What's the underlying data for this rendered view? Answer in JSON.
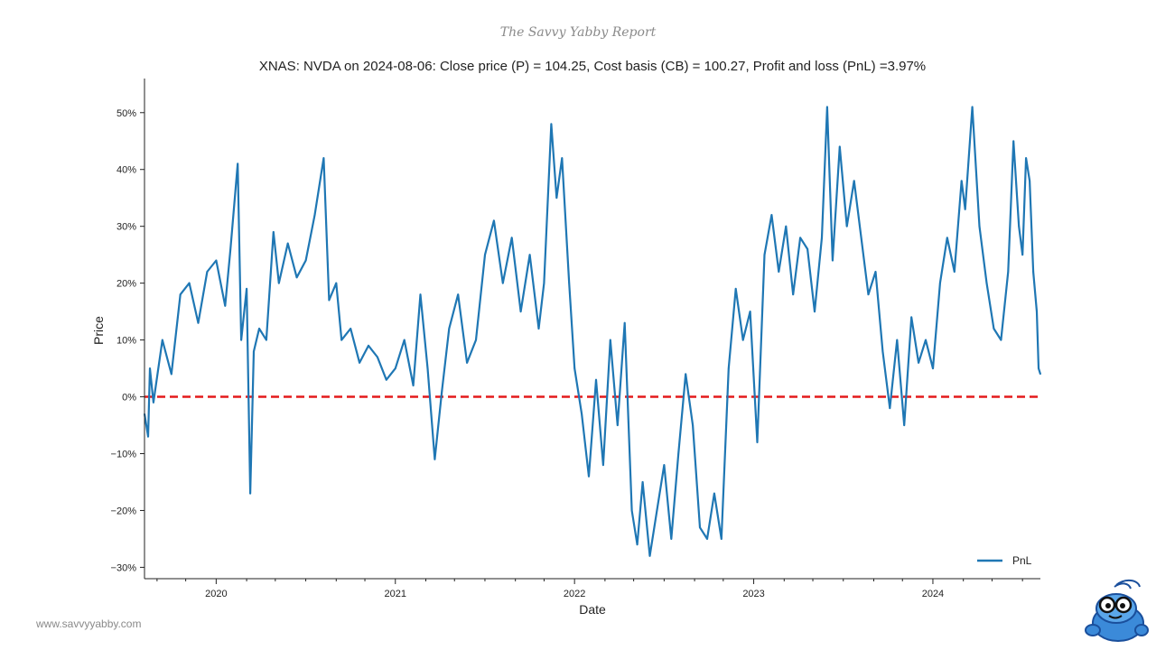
{
  "brand": {
    "header": "The Savvy Yabby Report",
    "footer_url": "www.savvyyabby.com"
  },
  "colors": {
    "series": "#1f77b4",
    "zero_line": "#e41a1c",
    "text": "#222222",
    "brand_text": "#8a8a8a"
  },
  "chart_data": {
    "type": "line",
    "title": "XNAS: NVDA on 2024-08-06: Close price (P) = 104.25, Cost basis (CB) = 100.27, Profit and loss (PnL) =3.97%",
    "xlabel": "Date",
    "ylabel": "Price",
    "xlim": [
      2019.6,
      2024.6
    ],
    "ylim": [
      -32,
      56
    ],
    "y_ticks": [
      -30,
      -20,
      -10,
      0,
      10,
      20,
      30,
      40,
      50
    ],
    "y_tick_labels": [
      "−30%",
      "−20%",
      "−10%",
      "0%",
      "10%",
      "20%",
      "30%",
      "40%",
      "50%"
    ],
    "x_ticks": [
      2020,
      2021,
      2022,
      2023,
      2024
    ],
    "x_tick_labels": [
      "2020",
      "2021",
      "2022",
      "2023",
      "2024"
    ],
    "x_minor_ticks": [
      2019.67,
      2019.83,
      2020.17,
      2020.33,
      2020.5,
      2020.67,
      2020.83,
      2021.17,
      2021.33,
      2021.5,
      2021.67,
      2021.83,
      2022.17,
      2022.33,
      2022.5,
      2022.67,
      2022.83,
      2023.17,
      2023.33,
      2023.5,
      2023.67,
      2023.83,
      2024.17,
      2024.33,
      2024.5
    ],
    "legend": {
      "position": "bottom-right",
      "entries": [
        "PnL"
      ]
    },
    "reference_line": {
      "y": 0,
      "style": "dashed"
    },
    "series": [
      {
        "name": "PnL",
        "x": [
          2019.6,
          2019.62,
          2019.63,
          2019.65,
          2019.7,
          2019.75,
          2019.8,
          2019.85,
          2019.9,
          2019.95,
          2020.0,
          2020.05,
          2020.08,
          2020.12,
          2020.14,
          2020.17,
          2020.19,
          2020.21,
          2020.24,
          2020.28,
          2020.32,
          2020.35,
          2020.4,
          2020.45,
          2020.5,
          2020.55,
          2020.6,
          2020.63,
          2020.67,
          2020.7,
          2020.75,
          2020.8,
          2020.85,
          2020.9,
          2020.95,
          2021.0,
          2021.05,
          2021.1,
          2021.14,
          2021.18,
          2021.22,
          2021.26,
          2021.3,
          2021.35,
          2021.4,
          2021.45,
          2021.5,
          2021.55,
          2021.6,
          2021.65,
          2021.7,
          2021.75,
          2021.8,
          2021.83,
          2021.87,
          2021.9,
          2021.93,
          2021.97,
          2022.0,
          2022.04,
          2022.08,
          2022.12,
          2022.16,
          2022.2,
          2022.24,
          2022.28,
          2022.32,
          2022.35,
          2022.38,
          2022.42,
          2022.46,
          2022.5,
          2022.54,
          2022.58,
          2022.62,
          2022.66,
          2022.7,
          2022.74,
          2022.78,
          2022.82,
          2022.86,
          2022.9,
          2022.94,
          2022.98,
          2023.02,
          2023.06,
          2023.1,
          2023.14,
          2023.18,
          2023.22,
          2023.26,
          2023.3,
          2023.34,
          2023.38,
          2023.41,
          2023.44,
          2023.48,
          2023.52,
          2023.56,
          2023.6,
          2023.64,
          2023.68,
          2023.72,
          2023.76,
          2023.8,
          2023.84,
          2023.88,
          2023.92,
          2023.96,
          2024.0,
          2024.04,
          2024.08,
          2024.12,
          2024.16,
          2024.18,
          2024.22,
          2024.26,
          2024.3,
          2024.34,
          2024.38,
          2024.42,
          2024.45,
          2024.48,
          2024.5,
          2024.52,
          2024.54,
          2024.56,
          2024.58,
          2024.59,
          2024.6
        ],
        "values": [
          -3,
          -7,
          5,
          -1,
          10,
          4,
          18,
          20,
          13,
          22,
          24,
          16,
          26,
          41,
          10,
          19,
          -17,
          8,
          12,
          10,
          29,
          20,
          27,
          21,
          24,
          32,
          42,
          17,
          20,
          10,
          12,
          6,
          9,
          7,
          3,
          5,
          10,
          2,
          18,
          5,
          -11,
          1,
          12,
          18,
          6,
          10,
          25,
          31,
          20,
          28,
          15,
          25,
          12,
          20,
          48,
          35,
          42,
          20,
          5,
          -3,
          -14,
          3,
          -12,
          10,
          -5,
          13,
          -20,
          -26,
          -15,
          -28,
          -20,
          -12,
          -25,
          -10,
          4,
          -5,
          -23,
          -25,
          -17,
          -25,
          5,
          19,
          10,
          15,
          -8,
          25,
          32,
          22,
          30,
          18,
          28,
          26,
          15,
          28,
          51,
          24,
          44,
          30,
          38,
          28,
          18,
          22,
          8,
          -2,
          10,
          -5,
          14,
          6,
          10,
          5,
          20,
          28,
          22,
          38,
          33,
          51,
          30,
          20,
          12,
          10,
          22,
          45,
          30,
          25,
          42,
          38,
          22,
          15,
          5,
          4
        ]
      }
    ]
  }
}
